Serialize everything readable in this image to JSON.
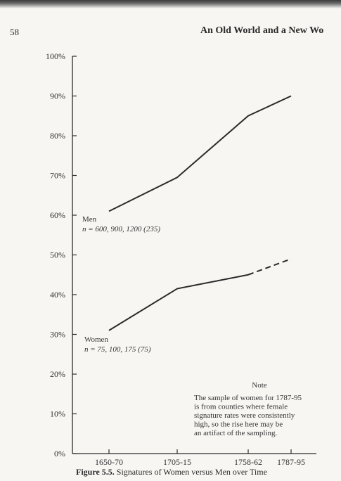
{
  "page": {
    "page_number": "58",
    "running_head": "An Old World and a New Wo"
  },
  "caption": {
    "figure_label": "Figure 5.5.",
    "text": "Signatures of Women versus Men over Time"
  },
  "chart_data": {
    "type": "line",
    "title": "",
    "xlabel": "",
    "ylabel": "",
    "categories": [
      "1650-70",
      "1705-15",
      "1758-62",
      "1787-95"
    ],
    "ylim": [
      0,
      100
    ],
    "yticks": [
      "0%",
      "10%",
      "20%",
      "30%",
      "40%",
      "50%",
      "60%",
      "70%",
      "80%",
      "90%",
      "100%"
    ],
    "grid": false,
    "colors": {
      "line": "#2b2b2b"
    },
    "series": [
      {
        "name": "Men",
        "sample": "n = 600, 900, 1200 (235)",
        "values": [
          61,
          69.5,
          85,
          90
        ],
        "dashed_last_segment": false
      },
      {
        "name": "Women",
        "sample": "n = 75, 100, 175 (75)",
        "values": [
          31,
          41.5,
          45,
          49
        ],
        "dashed_last_segment": true
      }
    ],
    "note": {
      "heading": "Note",
      "lines": [
        "The sample of women for 1787-95",
        "is from counties where female",
        "signature rates were consistently",
        "high, so the rise here may be",
        "an artifact of the sampling."
      ]
    }
  }
}
